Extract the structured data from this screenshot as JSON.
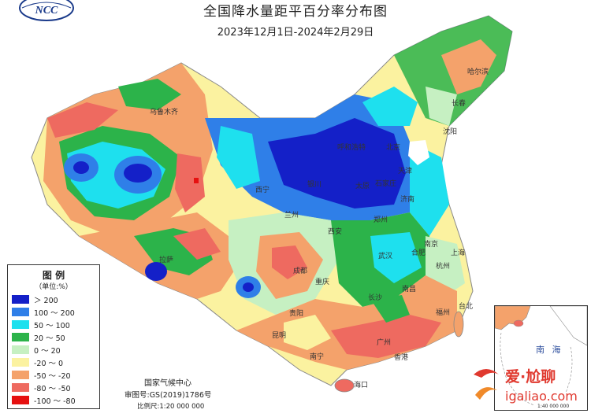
{
  "title": "全国降水量距平百分率分布图",
  "subtitle": "2023年12月1日-2024年2月29日",
  "logo_text": "NCC",
  "legend": {
    "title": "图 例",
    "unit": "（单位:%）",
    "items": [
      {
        "label": "＞ 200",
        "color": "#1420c8"
      },
      {
        "label": "100 ～ 200",
        "color": "#2f7fe8"
      },
      {
        "label": "50 ～ 100",
        "color": "#1ee0ee"
      },
      {
        "label": "20 ～ 50",
        "color": "#2cb34a"
      },
      {
        "label": "0 ～ 20",
        "color": "#c6f0c2"
      },
      {
        "label": "-20 ～ 0",
        "color": "#fbf2a0"
      },
      {
        "label": "-50 ～ -20",
        "color": "#f4a26b"
      },
      {
        "label": "-80 ～ -50",
        "color": "#ee6a60"
      },
      {
        "label": "-100 ～ -80",
        "color": "#e61010"
      }
    ]
  },
  "credits": {
    "agency": "国家气候中心",
    "review": "审图号:GS(2019)1786号",
    "scale": "比例尺:1:20 000 000"
  },
  "inset": {
    "label": "南 海",
    "scale": "1:40 000 000"
  },
  "cities": [
    {
      "name": "乌鲁木齐"
    },
    {
      "name": "哈尔滨"
    },
    {
      "name": "长春"
    },
    {
      "name": "沈阳"
    },
    {
      "name": "呼和浩特"
    },
    {
      "name": "北京"
    },
    {
      "name": "天津"
    },
    {
      "name": "石家庄"
    },
    {
      "name": "太原"
    },
    {
      "name": "银川"
    },
    {
      "name": "西宁"
    },
    {
      "name": "兰州"
    },
    {
      "name": "济南"
    },
    {
      "name": "郑州"
    },
    {
      "name": "西安"
    },
    {
      "name": "南京"
    },
    {
      "name": "合肥"
    },
    {
      "name": "上海"
    },
    {
      "name": "杭州"
    },
    {
      "name": "武汉"
    },
    {
      "name": "拉萨"
    },
    {
      "name": "成都"
    },
    {
      "name": "重庆"
    },
    {
      "name": "长沙"
    },
    {
      "name": "南昌"
    },
    {
      "name": "福州"
    },
    {
      "name": "台北"
    },
    {
      "name": "贵阳"
    },
    {
      "name": "昆明"
    },
    {
      "name": "南宁"
    },
    {
      "name": "广州"
    },
    {
      "name": "香港"
    },
    {
      "name": "海口"
    }
  ],
  "watermark": {
    "line1": "爱·尬聊",
    "line2": "igaliao.com"
  }
}
